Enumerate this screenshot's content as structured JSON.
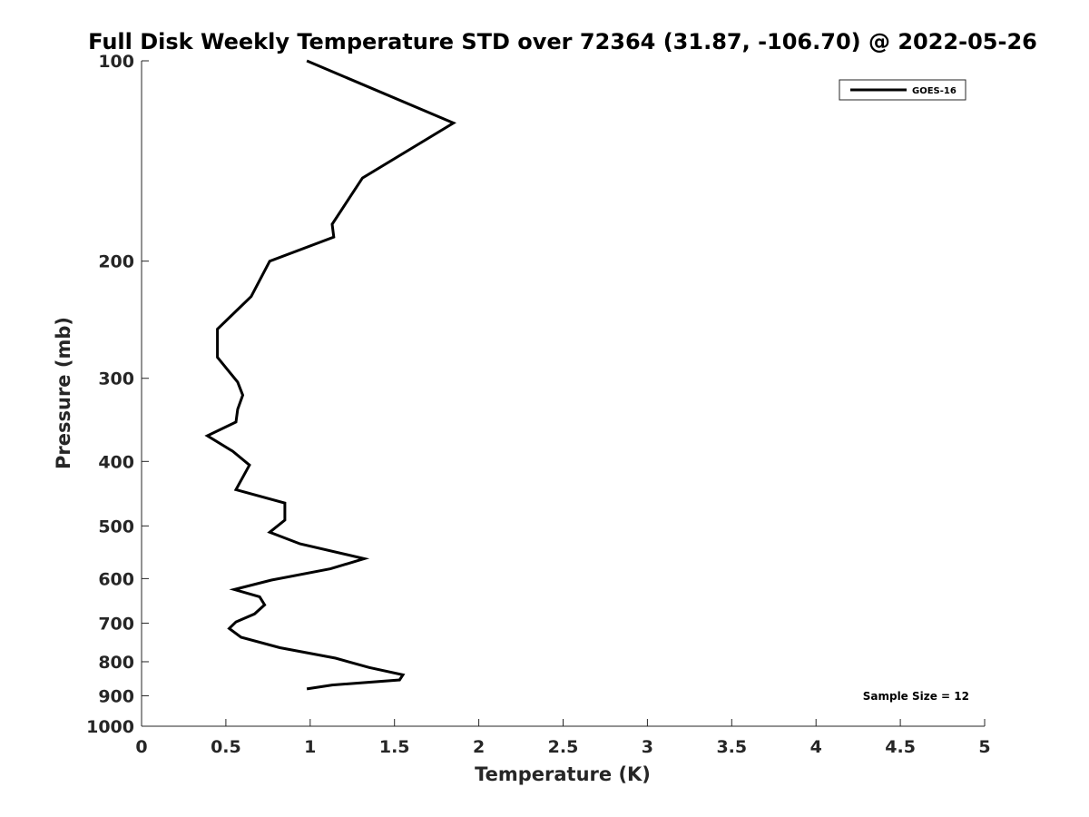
{
  "chart_data": {
    "type": "line",
    "title": "Full Disk Weekly Temperature STD over 72364 (31.87, -106.70) @ 2022-05-26",
    "xlabel": "Temperature (K)",
    "ylabel": "Pressure (mb)",
    "xlim": [
      0,
      5
    ],
    "ylim": [
      1000,
      100
    ],
    "yscale": "log",
    "x_ticks": [
      0,
      0.5,
      1,
      1.5,
      2,
      2.5,
      3,
      3.5,
      4,
      4.5,
      5
    ],
    "x_tick_labels": [
      "0",
      "0.5",
      "1",
      "1.5",
      "2",
      "2.5",
      "3",
      "3.5",
      "4",
      "4.5",
      "5"
    ],
    "y_ticks": [
      100,
      200,
      300,
      400,
      500,
      600,
      700,
      800,
      900,
      1000
    ],
    "y_tick_labels": [
      "100",
      "200",
      "300",
      "400",
      "500",
      "600",
      "700",
      "800",
      "900",
      "1000"
    ],
    "grid": false,
    "legend_position": "top-right",
    "series": [
      {
        "name": "GOES-16",
        "color": "#000000",
        "x": [
          0.98,
          1.85,
          1.31,
          1.13,
          1.14,
          0.76,
          0.65,
          0.45,
          0.45,
          0.57,
          0.6,
          0.57,
          0.56,
          0.39,
          0.54,
          0.64,
          0.56,
          0.85,
          0.85,
          0.76,
          0.94,
          1.32,
          1.12,
          0.77,
          0.55,
          0.7,
          0.73,
          0.67,
          0.56,
          0.52,
          0.59,
          0.82,
          1.15,
          1.35,
          1.55,
          1.53,
          1.13,
          0.98
        ],
        "y": [
          100,
          124,
          150,
          176,
          184,
          200,
          226,
          253,
          279,
          304,
          318,
          334,
          349,
          366,
          386,
          405,
          441,
          462,
          490,
          511,
          532,
          560,
          580,
          603,
          623,
          639,
          657,
          678,
          697,
          713,
          735,
          762,
          790,
          816,
          837,
          852,
          867,
          879
        ]
      }
    ],
    "annotations": [
      "Sample Size = 12"
    ]
  }
}
